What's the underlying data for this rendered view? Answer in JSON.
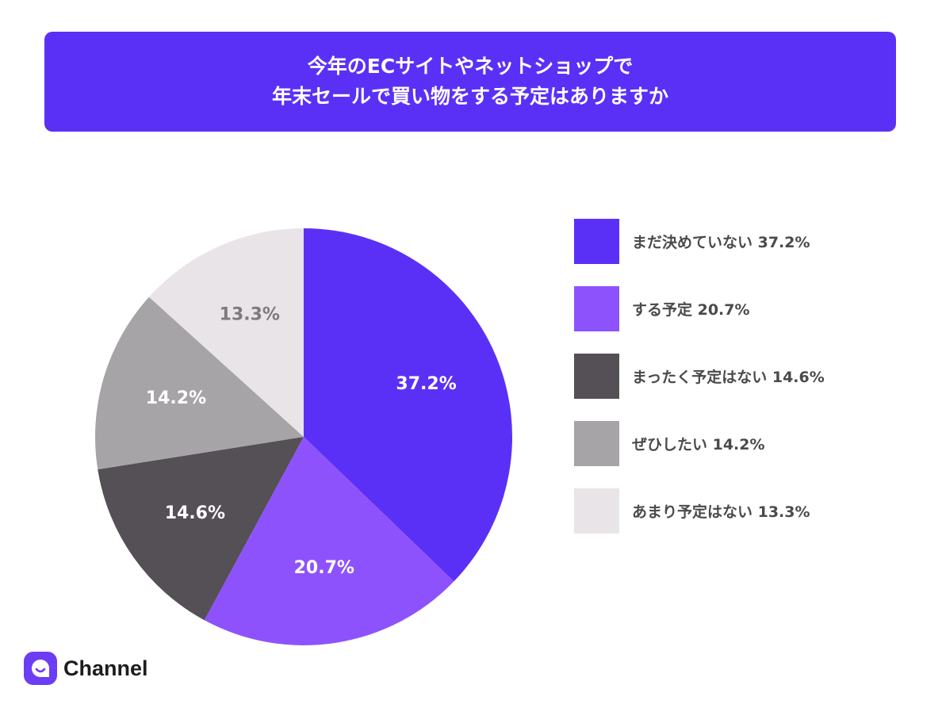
{
  "title": {
    "line1": "今年のECサイトやネットショップで",
    "line2": "年末セールで買い物をする予定はありますか"
  },
  "brand": {
    "name": "Channel",
    "logo_icon": "chat-bubble-smile-icon",
    "logo_color": "#6c3df4"
  },
  "chart_data": {
    "type": "pie",
    "start_angle_deg": 0,
    "direction": "clockwise",
    "slices": [
      {
        "label": "まだ決めていない",
        "value": 37.2,
        "value_label": "37.2%",
        "color": "#5b30f6",
        "text_color": "#ffffff"
      },
      {
        "label": "する予定",
        "value": 20.7,
        "value_label": "20.7%",
        "color": "#8e52fd",
        "text_color": "#ffffff"
      },
      {
        "label": "まったく予定はない",
        "value": 14.6,
        "value_label": "14.6%",
        "color": "#545055",
        "text_color": "#ffffff"
      },
      {
        "label": "ぜひしたい",
        "value": 14.2,
        "value_label": "14.2%",
        "color": "#a7a4a7",
        "text_color": "#ffffff"
      },
      {
        "label": "あまり予定はない",
        "value": 13.3,
        "value_label": "13.3%",
        "color": "#e8e4e7",
        "text_color": "#7d7a7d"
      }
    ],
    "legend": {
      "placement": "right",
      "items": [
        "まだ決めていない 37.2%",
        "する予定 20.7%",
        "まったく予定はない 14.6%",
        "ぜひしたい 14.2%",
        "あまり予定はない 13.3%"
      ]
    }
  }
}
